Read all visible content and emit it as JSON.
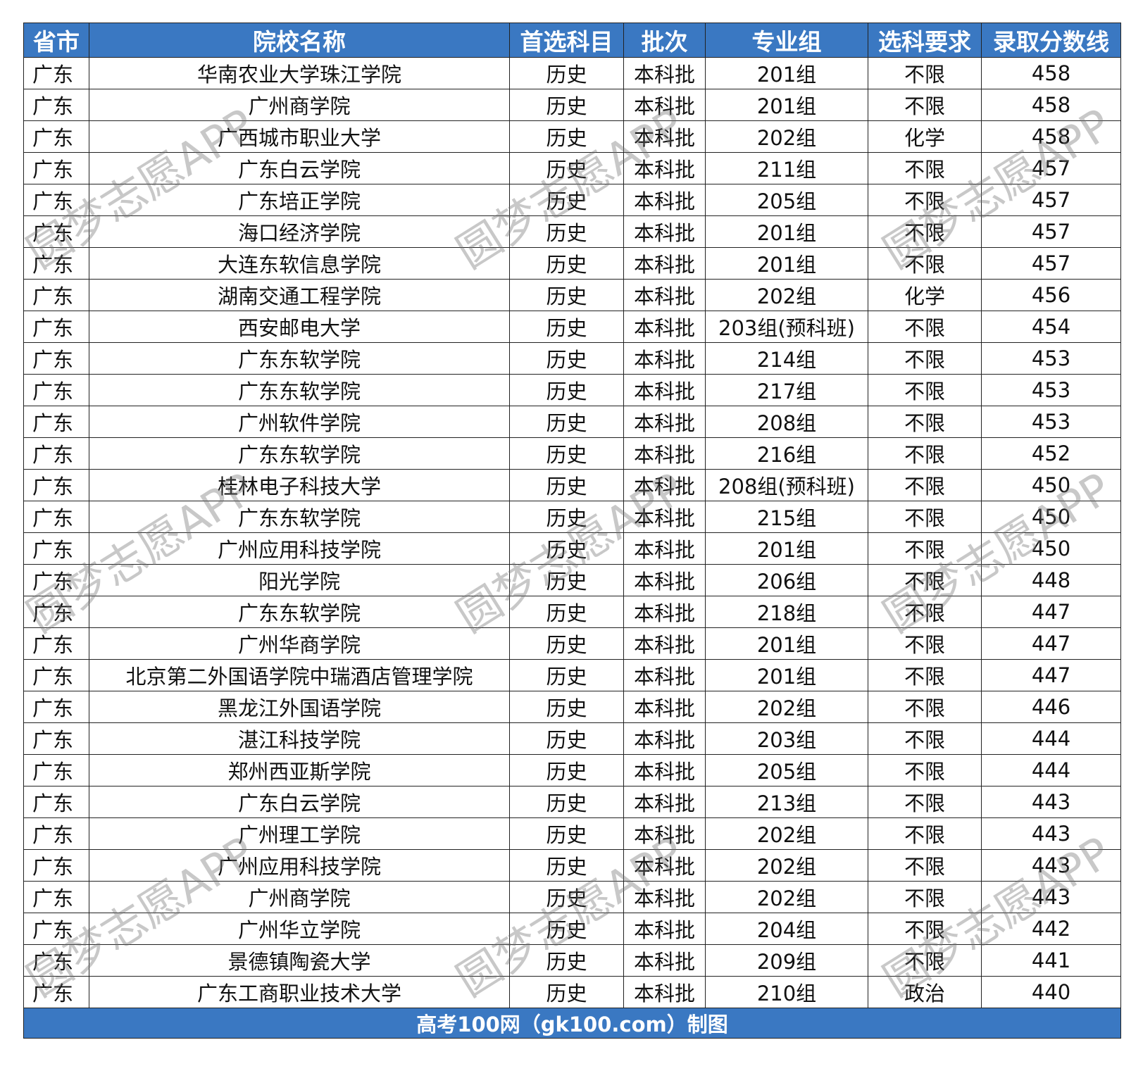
{
  "table": {
    "header": [
      "省市",
      "院校名称",
      "首选科目",
      "批次",
      "专业组",
      "选科要求",
      "录取分数线"
    ],
    "rows": [
      [
        "广东",
        "华南农业大学珠江学院",
        "历史",
        "本科批",
        "201组",
        "不限",
        458
      ],
      [
        "广东",
        "广州商学院",
        "历史",
        "本科批",
        "201组",
        "不限",
        458
      ],
      [
        "广东",
        "广西城市职业大学",
        "历史",
        "本科批",
        "202组",
        "化学",
        458
      ],
      [
        "广东",
        "广东白云学院",
        "历史",
        "本科批",
        "211组",
        "不限",
        457
      ],
      [
        "广东",
        "广东培正学院",
        "历史",
        "本科批",
        "205组",
        "不限",
        457
      ],
      [
        "广东",
        "海口经济学院",
        "历史",
        "本科批",
        "201组",
        "不限",
        457
      ],
      [
        "广东",
        "大连东软信息学院",
        "历史",
        "本科批",
        "201组",
        "不限",
        457
      ],
      [
        "广东",
        "湖南交通工程学院",
        "历史",
        "本科批",
        "202组",
        "化学",
        456
      ],
      [
        "广东",
        "西安邮电大学",
        "历史",
        "本科批",
        "203组(预科班)",
        "不限",
        454
      ],
      [
        "广东",
        "广东东软学院",
        "历史",
        "本科批",
        "214组",
        "不限",
        453
      ],
      [
        "广东",
        "广东东软学院",
        "历史",
        "本科批",
        "217组",
        "不限",
        453
      ],
      [
        "广东",
        "广州软件学院",
        "历史",
        "本科批",
        "208组",
        "不限",
        453
      ],
      [
        "广东",
        "广东东软学院",
        "历史",
        "本科批",
        "216组",
        "不限",
        452
      ],
      [
        "广东",
        "桂林电子科技大学",
        "历史",
        "本科批",
        "208组(预科班)",
        "不限",
        450
      ],
      [
        "广东",
        "广东东软学院",
        "历史",
        "本科批",
        "215组",
        "不限",
        450
      ],
      [
        "广东",
        "广州应用科技学院",
        "历史",
        "本科批",
        "201组",
        "不限",
        450
      ],
      [
        "广东",
        "阳光学院",
        "历史",
        "本科批",
        "206组",
        "不限",
        448
      ],
      [
        "广东",
        "广东东软学院",
        "历史",
        "本科批",
        "218组",
        "不限",
        447
      ],
      [
        "广东",
        "广州华商学院",
        "历史",
        "本科批",
        "201组",
        "不限",
        447
      ],
      [
        "广东",
        "北京第二外国语学院中瑞酒店管理学院",
        "历史",
        "本科批",
        "201组",
        "不限",
        447
      ],
      [
        "广东",
        "黑龙江外国语学院",
        "历史",
        "本科批",
        "202组",
        "不限",
        446
      ],
      [
        "广东",
        "湛江科技学院",
        "历史",
        "本科批",
        "203组",
        "不限",
        444
      ],
      [
        "广东",
        "郑州西亚斯学院",
        "历史",
        "本科批",
        "205组",
        "不限",
        444
      ],
      [
        "广东",
        "广东白云学院",
        "历史",
        "本科批",
        "213组",
        "不限",
        443
      ],
      [
        "广东",
        "广州理工学院",
        "历史",
        "本科批",
        "202组",
        "不限",
        443
      ],
      [
        "广东",
        "广州应用科技学院",
        "历史",
        "本科批",
        "202组",
        "不限",
        443
      ],
      [
        "广东",
        "广州商学院",
        "历史",
        "本科批",
        "202组",
        "不限",
        443
      ],
      [
        "广东",
        "广州华立学院",
        "历史",
        "本科批",
        "204组",
        "不限",
        442
      ],
      [
        "广东",
        "景德镇陶瓷大学",
        "历史",
        "本科批",
        "209组",
        "不限",
        441
      ],
      [
        "广东",
        "广东工商职业技术大学",
        "历史",
        "本科批",
        "210组",
        "政治",
        440
      ]
    ],
    "footer": "高考100网（gk100.com）制图"
  },
  "watermark": "圆梦志愿APP"
}
